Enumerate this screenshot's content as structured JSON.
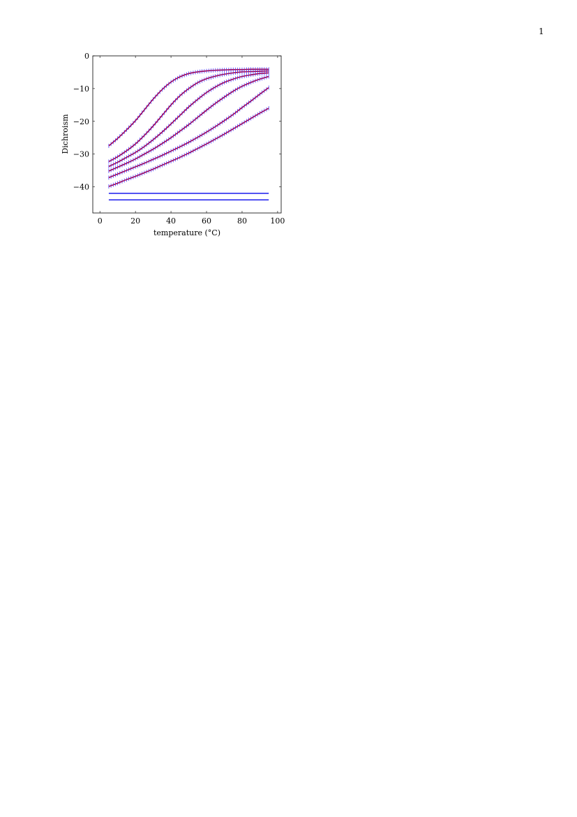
{
  "page": {
    "page_number": "1"
  },
  "chart_data": {
    "type": "line",
    "title": "",
    "xlabel": "temperature (°C)",
    "ylabel": "Dichroism",
    "xlim": [
      -4,
      102
    ],
    "ylim": [
      -48,
      0
    ],
    "x_ticks": [
      0,
      20,
      40,
      60,
      80,
      100
    ],
    "y_ticks": [
      0,
      -10,
      -20,
      -30,
      -40
    ],
    "x_tick_labels": [
      "0",
      "20",
      "40",
      "60",
      "80",
      "100"
    ],
    "y_tick_labels": [
      "0",
      "−10",
      "−20",
      "−30",
      "−40"
    ],
    "grid": false,
    "legend": "none",
    "colors": {
      "fit_line": "#b0003a",
      "data_marker": "#3a2aff",
      "constant_line": "#1a1aee"
    },
    "x": [
      5,
      10,
      15,
      20,
      25,
      30,
      35,
      40,
      45,
      50,
      55,
      60,
      65,
      70,
      75,
      80,
      85,
      90,
      95
    ],
    "series": [
      {
        "values": [
          -27.5,
          -25.2,
          -22.6,
          -19.8,
          -16.5,
          -13.2,
          -10.3,
          -8.0,
          -6.4,
          -5.4,
          -4.9,
          -4.6,
          -4.4,
          -4.3,
          -4.2,
          -4.2,
          -4.1,
          -4.1,
          -4.1
        ]
      },
      {
        "values": [
          -32.3,
          -30.8,
          -29.0,
          -26.9,
          -24.3,
          -21.4,
          -18.2,
          -15.0,
          -12.2,
          -10.0,
          -8.2,
          -7.0,
          -6.2,
          -5.6,
          -5.2,
          -4.9,
          -4.8,
          -4.7,
          -4.6
        ]
      },
      {
        "values": [
          -33.8,
          -32.5,
          -31.0,
          -29.5,
          -27.7,
          -25.6,
          -23.3,
          -20.8,
          -18.2,
          -15.6,
          -13.3,
          -11.2,
          -9.5,
          -8.1,
          -7.1,
          -6.3,
          -5.8,
          -5.4,
          -5.2
        ]
      },
      {
        "values": [
          -35.2,
          -34.0,
          -32.8,
          -31.5,
          -30.0,
          -28.5,
          -26.8,
          -25.0,
          -23.0,
          -21.0,
          -18.8,
          -16.6,
          -14.5,
          -12.6,
          -10.8,
          -9.3,
          -8.1,
          -7.1,
          -6.3
        ]
      },
      {
        "values": [
          -37.2,
          -36.1,
          -35.0,
          -33.9,
          -32.8,
          -31.6,
          -30.4,
          -29.1,
          -27.8,
          -26.4,
          -24.9,
          -23.3,
          -21.6,
          -19.8,
          -17.9,
          -15.8,
          -13.8,
          -11.7,
          -9.7
        ]
      },
      {
        "values": [
          -39.9,
          -38.9,
          -37.8,
          -36.8,
          -35.7,
          -34.6,
          -33.4,
          -32.2,
          -31.0,
          -29.7,
          -28.3,
          -26.9,
          -25.4,
          -23.9,
          -22.3,
          -20.7,
          -19.1,
          -17.5,
          -16.0
        ]
      }
    ],
    "constant_lines": [
      -42.0,
      -44.0
    ]
  }
}
